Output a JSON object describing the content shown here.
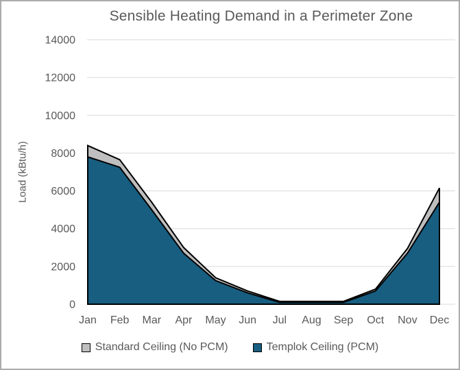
{
  "window": {
    "background": "#FFFFFF",
    "border_color": "#ABABAB"
  },
  "chart_data": {
    "type": "area",
    "title": "Sensible Heating Demand in a Perimeter Zone",
    "xlabel": "",
    "ylabel": "Load (kBtu/h)",
    "categories": [
      "Jan",
      "Feb",
      "Mar",
      "Apr",
      "May",
      "Jun",
      "Jul",
      "Aug",
      "Sep",
      "Oct",
      "Nov",
      "Dec"
    ],
    "series": [
      {
        "name": "Standard Ceiling (No PCM)",
        "color": "#BFBFBF",
        "outline_color": "#000000",
        "values": [
          8400,
          7650,
          5400,
          3000,
          1400,
          700,
          150,
          150,
          150,
          800,
          2950,
          6150
        ]
      },
      {
        "name": "Templok Ceiling (PCM)",
        "color": "#175E81",
        "outline_color": "#000000",
        "values": [
          7800,
          7250,
          5000,
          2700,
          1250,
          600,
          100,
          100,
          100,
          700,
          2700,
          5400
        ]
      }
    ],
    "ylim": [
      0,
      14000
    ],
    "ytick_step": 2000,
    "grid": true,
    "grid_color": "#D9D9D9",
    "text_color": "#595959",
    "legend_position": "bottom"
  }
}
